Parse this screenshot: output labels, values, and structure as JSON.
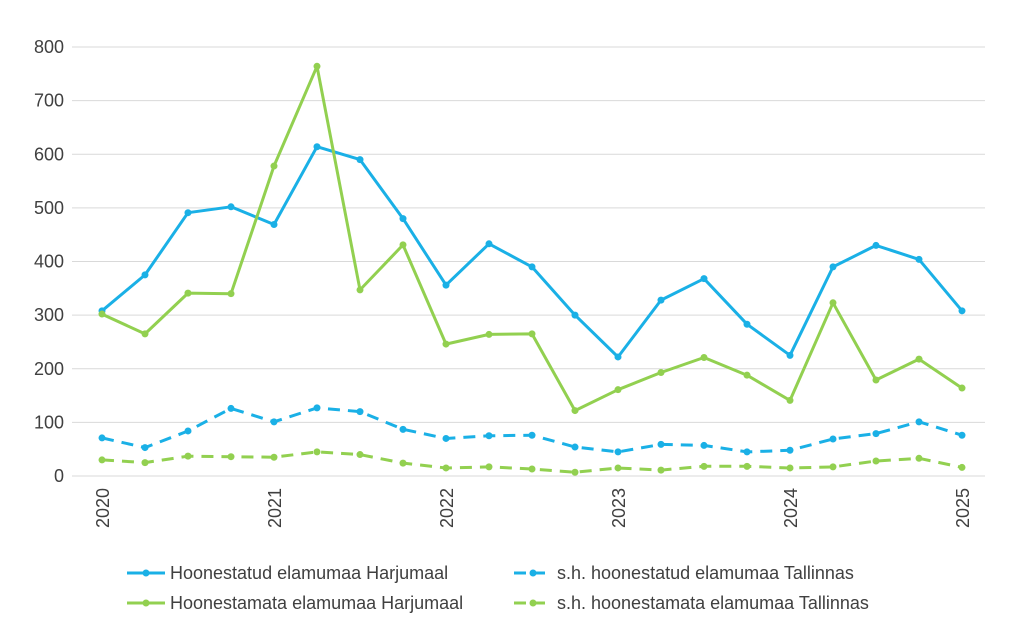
{
  "chart_data": {
    "type": "line",
    "x": [
      2020.0,
      2020.25,
      2020.5,
      2020.75,
      2021.0,
      2021.25,
      2021.5,
      2021.75,
      2022.0,
      2022.25,
      2022.5,
      2022.75,
      2023.0,
      2023.25,
      2023.5,
      2023.75,
      2024.0,
      2024.25,
      2024.5,
      2024.75,
      2025.0
    ],
    "x_ticks": [
      "2020",
      "2021",
      "2022",
      "2023",
      "2024",
      "2025"
    ],
    "y_ticks": [
      "0",
      "100",
      "200",
      "300",
      "400",
      "500",
      "600",
      "700",
      "800"
    ],
    "ylim": [
      0,
      800
    ],
    "grid": "horizontal",
    "legend_position": "bottom",
    "series": [
      {
        "name": "Hoonestatud elamumaa Harjumaal",
        "color": "#1ab0e6",
        "dash": "solid",
        "values": [
          308,
          375,
          491,
          502,
          469,
          614,
          590,
          480,
          356,
          433,
          390,
          300,
          222,
          328,
          368,
          283,
          225,
          390,
          430,
          404,
          308
        ]
      },
      {
        "name": "s.h. hoonestatud elamumaa Tallinnas",
        "color": "#1ab0e6",
        "dash": "dashed",
        "values": [
          71,
          53,
          84,
          126,
          101,
          127,
          120,
          87,
          70,
          75,
          76,
          54,
          45,
          59,
          57,
          45,
          48,
          69,
          79,
          101,
          76
        ]
      },
      {
        "name": "Hoonestamata elamumaa Harjumaal",
        "color": "#92d050",
        "dash": "solid",
        "values": [
          302,
          265,
          341,
          340,
          578,
          764,
          347,
          431,
          246,
          264,
          265,
          122,
          161,
          193,
          221,
          188,
          141,
          323,
          179,
          218,
          164
        ]
      },
      {
        "name": "s.h. hoonestamata elamumaa Tallinnas",
        "color": "#92d050",
        "dash": "dashed",
        "values": [
          30,
          25,
          37,
          36,
          35,
          45,
          40,
          24,
          15,
          17,
          13,
          7,
          15,
          11,
          18,
          18,
          15,
          17,
          28,
          33,
          16
        ]
      }
    ]
  }
}
